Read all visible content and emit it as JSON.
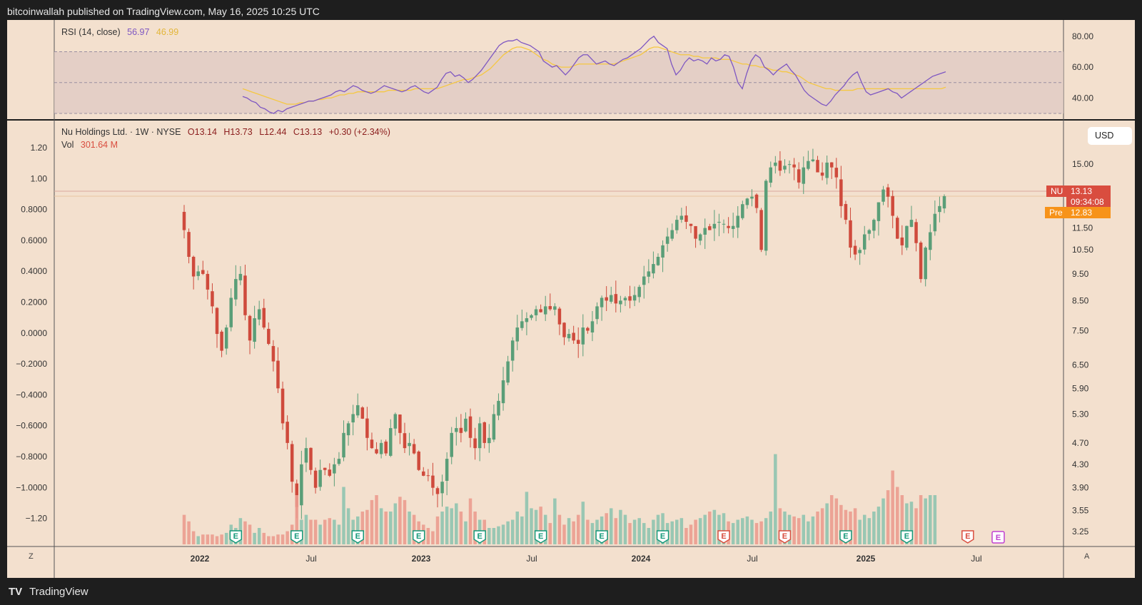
{
  "header": {
    "published": "bitcoinwallah published on TradingView.com, May 16, 2025 10:25 UTC"
  },
  "footer": {
    "brand": "TradingView",
    "left_btn": "Z",
    "right_btn": "A"
  },
  "rsi": {
    "label": "RSI (14, close)",
    "value": "56.97",
    "ma_value": "46.99",
    "line_color": "#7e57c2",
    "ma_color": "#f5c842",
    "ticks": [
      "80.00",
      "60.00",
      "40.00"
    ],
    "weekly": [
      41,
      40,
      38,
      37,
      34,
      33,
      31,
      30,
      32,
      31,
      33,
      34,
      35,
      36,
      37,
      38,
      38,
      39,
      40,
      41,
      42,
      44,
      45,
      44,
      46,
      48,
      47,
      45,
      44,
      43,
      44,
      46,
      48,
      47,
      46,
      45,
      44,
      45,
      47,
      48,
      46,
      44,
      43,
      45,
      47,
      52,
      56,
      57,
      54,
      55,
      53,
      50,
      52,
      55,
      58,
      62,
      66,
      70,
      74,
      76,
      77,
      77,
      78,
      76,
      75,
      74,
      72,
      70,
      64,
      62,
      60,
      61,
      58,
      55,
      58,
      62,
      66,
      68,
      68,
      65,
      62,
      63,
      64,
      62,
      61,
      63,
      65,
      66,
      68,
      70,
      72,
      75,
      78,
      80,
      76,
      74,
      72,
      62,
      55,
      58,
      63,
      66,
      64,
      65,
      64,
      62,
      66,
      64,
      65,
      68,
      67,
      60,
      50,
      46,
      56,
      64,
      68,
      66,
      60,
      58,
      55,
      58,
      60,
      62,
      58,
      55,
      50,
      45,
      42,
      40,
      38,
      36,
      35,
      38,
      42,
      45,
      48,
      52,
      55,
      57,
      50,
      44,
      42,
      43,
      44,
      45,
      46,
      44,
      43,
      40,
      42,
      44,
      46,
      48,
      50,
      52,
      54,
      55,
      56,
      56.97
    ],
    "ma": [
      46,
      45,
      44,
      43,
      42,
      41,
      40,
      39,
      38,
      37,
      36,
      36,
      36,
      37,
      37,
      38,
      38,
      39,
      39,
      40,
      40,
      41,
      42,
      42,
      43,
      43,
      44,
      44,
      44,
      44,
      44,
      44,
      44,
      45,
      45,
      45,
      45,
      45,
      45,
      46,
      46,
      46,
      46,
      46,
      46,
      47,
      48,
      49,
      50,
      51,
      52,
      52,
      53,
      54,
      55,
      57,
      59,
      62,
      65,
      68,
      70,
      72,
      73,
      73,
      72,
      71,
      69,
      67,
      65,
      64,
      62,
      61,
      60,
      60,
      60,
      61,
      62,
      62,
      62,
      62,
      62,
      62,
      62,
      62,
      62,
      63,
      64,
      65,
      66,
      67,
      68,
      70,
      72,
      73,
      73,
      72,
      71,
      70,
      69,
      68,
      68,
      68,
      67,
      67,
      66,
      66,
      66,
      66,
      65,
      65,
      65,
      64,
      63,
      62,
      62,
      61,
      61,
      60,
      60,
      59,
      58,
      58,
      57,
      57,
      56,
      55,
      54,
      52,
      50,
      49,
      48,
      47,
      46,
      46,
      45,
      45,
      45,
      45,
      45,
      46,
      46,
      46,
      46,
      46,
      46,
      46,
      46,
      46,
      46,
      46,
      46,
      46,
      46,
      46,
      46,
      46,
      46,
      46,
      46,
      46.99
    ]
  },
  "price": {
    "legend": {
      "name": "Nu Holdings Ltd. · 1W · NYSE",
      "open": "O13.14",
      "high": "H13.73",
      "low": "L12.44",
      "close": "C13.13",
      "change": "+0.30 (+2.34%)"
    },
    "vol_label": "Vol",
    "vol_value": "301.64 M",
    "left_axis": [
      "1.20",
      "1.00",
      "0.8000",
      "0.6000",
      "0.4000",
      "0.2000",
      "0.0000",
      "−0.2000",
      "−0.4000",
      "−0.6000",
      "−0.8000",
      "−1.0000",
      "−1.20"
    ],
    "right_axis": [
      "15.00",
      "11.50",
      "10.50",
      "9.50",
      "8.50",
      "7.50",
      "6.50",
      "5.90",
      "5.30",
      "4.70",
      "4.30",
      "3.90",
      "3.55",
      "3.25"
    ],
    "currency": "USD",
    "nu_tag": {
      "symbol": "NU",
      "price": "13.13",
      "countdown": "09:34:08",
      "color": "#d94d3f"
    },
    "pre_tag": {
      "label": "Pre",
      "price": "12.83",
      "color": "#f7931a"
    },
    "x_labels": [
      "2022",
      "Jul",
      "2023",
      "Jul",
      "2024",
      "Jul",
      "2025",
      "Jul"
    ],
    "earnings_marker": "E",
    "up_color": "#5a9e78",
    "down_color": "#cf4a3c"
  },
  "chart_data": {
    "type": "candlestick",
    "title": "Nu Holdings Ltd. · 1W · NYSE",
    "ylabel": "USD",
    "ylim": [
      3.1,
      17
    ],
    "close_weekly": [
      11.4,
      10.2,
      9.4,
      9.6,
      9.5,
      8.9,
      8.3,
      7.4,
      6.9,
      7.6,
      8.6,
      9.3,
      9.5,
      8.0,
      7.2,
      7.9,
      8.2,
      7.6,
      7.1,
      6.6,
      5.9,
      5.1,
      4.7,
      4.0,
      3.6,
      4.3,
      4.6,
      4.2,
      3.9,
      4.2,
      4.2,
      4.1,
      4.3,
      4.4,
      4.9,
      5.1,
      5.3,
      5.5,
      5.2,
      4.8,
      4.6,
      4.5,
      4.7,
      4.5,
      5.0,
      5.3,
      4.9,
      4.6,
      4.7,
      4.5,
      4.2,
      4.1,
      4.1,
      3.9,
      3.8,
      4.0,
      4.4,
      4.9,
      5.0,
      4.9,
      5.2,
      4.8,
      4.6,
      5.1,
      4.7,
      4.8,
      5.3,
      5.6,
      6.1,
      6.6,
      7.2,
      7.6,
      7.8,
      7.9,
      8.0,
      8.2,
      8.1,
      8.3,
      8.2,
      8.3,
      7.7,
      7.3,
      7.4,
      7.2,
      7.1,
      7.6,
      7.5,
      7.8,
      8.3,
      8.6,
      8.5,
      8.7,
      8.4,
      8.5,
      8.6,
      8.5,
      8.7,
      9.0,
      9.4,
      9.6,
      9.9,
      10.2,
      10.7,
      11.1,
      11.4,
      11.9,
      12.1,
      11.8,
      11.6,
      11.0,
      11.2,
      11.5,
      11.4,
      11.7,
      11.8,
      11.7,
      11.5,
      11.6,
      12.1,
      12.7,
      13.0,
      13.1,
      12.5,
      10.5,
      14.0,
      14.8,
      15.1,
      14.6,
      14.9,
      15.0,
      14.8,
      13.9,
      14.8,
      15.2,
      15.3,
      14.5,
      14.3,
      15.1,
      14.8,
      14.2,
      12.6,
      11.9,
      10.6,
      10.3,
      10.5,
      11.2,
      11.4,
      11.9,
      12.8,
      13.5,
      13.1,
      12.1,
      11.0,
      10.7,
      11.6,
      11.9,
      10.8,
      9.3,
      10.6,
      11.3,
      12.2,
      12.6,
      13.13
    ],
    "volume_weekly": [
      0.18,
      0.14,
      0.08,
      0.05,
      0.06,
      0.06,
      0.06,
      0.05,
      0.06,
      0.07,
      0.12,
      0.1,
      0.16,
      0.14,
      0.12,
      0.07,
      0.1,
      0.07,
      0.05,
      0.05,
      0.06,
      0.06,
      0.08,
      0.12,
      0.3,
      0.15,
      0.18,
      0.15,
      0.15,
      0.12,
      0.15,
      0.16,
      0.15,
      0.12,
      0.35,
      0.22,
      0.15,
      0.17,
      0.2,
      0.21,
      0.27,
      0.3,
      0.22,
      0.2,
      0.2,
      0.25,
      0.29,
      0.27,
      0.2,
      0.18,
      0.14,
      0.12,
      0.1,
      0.08,
      0.17,
      0.2,
      0.23,
      0.22,
      0.25,
      0.2,
      0.14,
      0.28,
      0.2,
      0.15,
      0.15,
      0.1,
      0.1,
      0.11,
      0.12,
      0.14,
      0.15,
      0.2,
      0.17,
      0.32,
      0.22,
      0.21,
      0.23,
      0.18,
      0.13,
      0.28,
      0.18,
      0.12,
      0.16,
      0.14,
      0.18,
      0.26,
      0.15,
      0.13,
      0.15,
      0.17,
      0.19,
      0.22,
      0.16,
      0.21,
      0.18,
      0.13,
      0.15,
      0.16,
      0.13,
      0.1,
      0.15,
      0.18,
      0.19,
      0.13,
      0.14,
      0.15,
      0.16,
      0.1,
      0.12,
      0.15,
      0.16,
      0.18,
      0.2,
      0.21,
      0.18,
      0.19,
      0.14,
      0.13,
      0.15,
      0.16,
      0.17,
      0.15,
      0.13,
      0.14,
      0.16,
      0.2,
      0.55,
      0.22,
      0.2,
      0.18,
      0.17,
      0.16,
      0.18,
      0.14,
      0.17,
      0.2,
      0.22,
      0.25,
      0.3,
      0.28,
      0.24,
      0.21,
      0.2,
      0.22,
      0.15,
      0.18,
      0.16,
      0.2,
      0.23,
      0.28,
      0.33,
      0.45,
      0.35,
      0.3,
      0.25,
      0.26,
      0.22,
      0.3,
      0.28,
      0.3,
      0.3
    ]
  }
}
